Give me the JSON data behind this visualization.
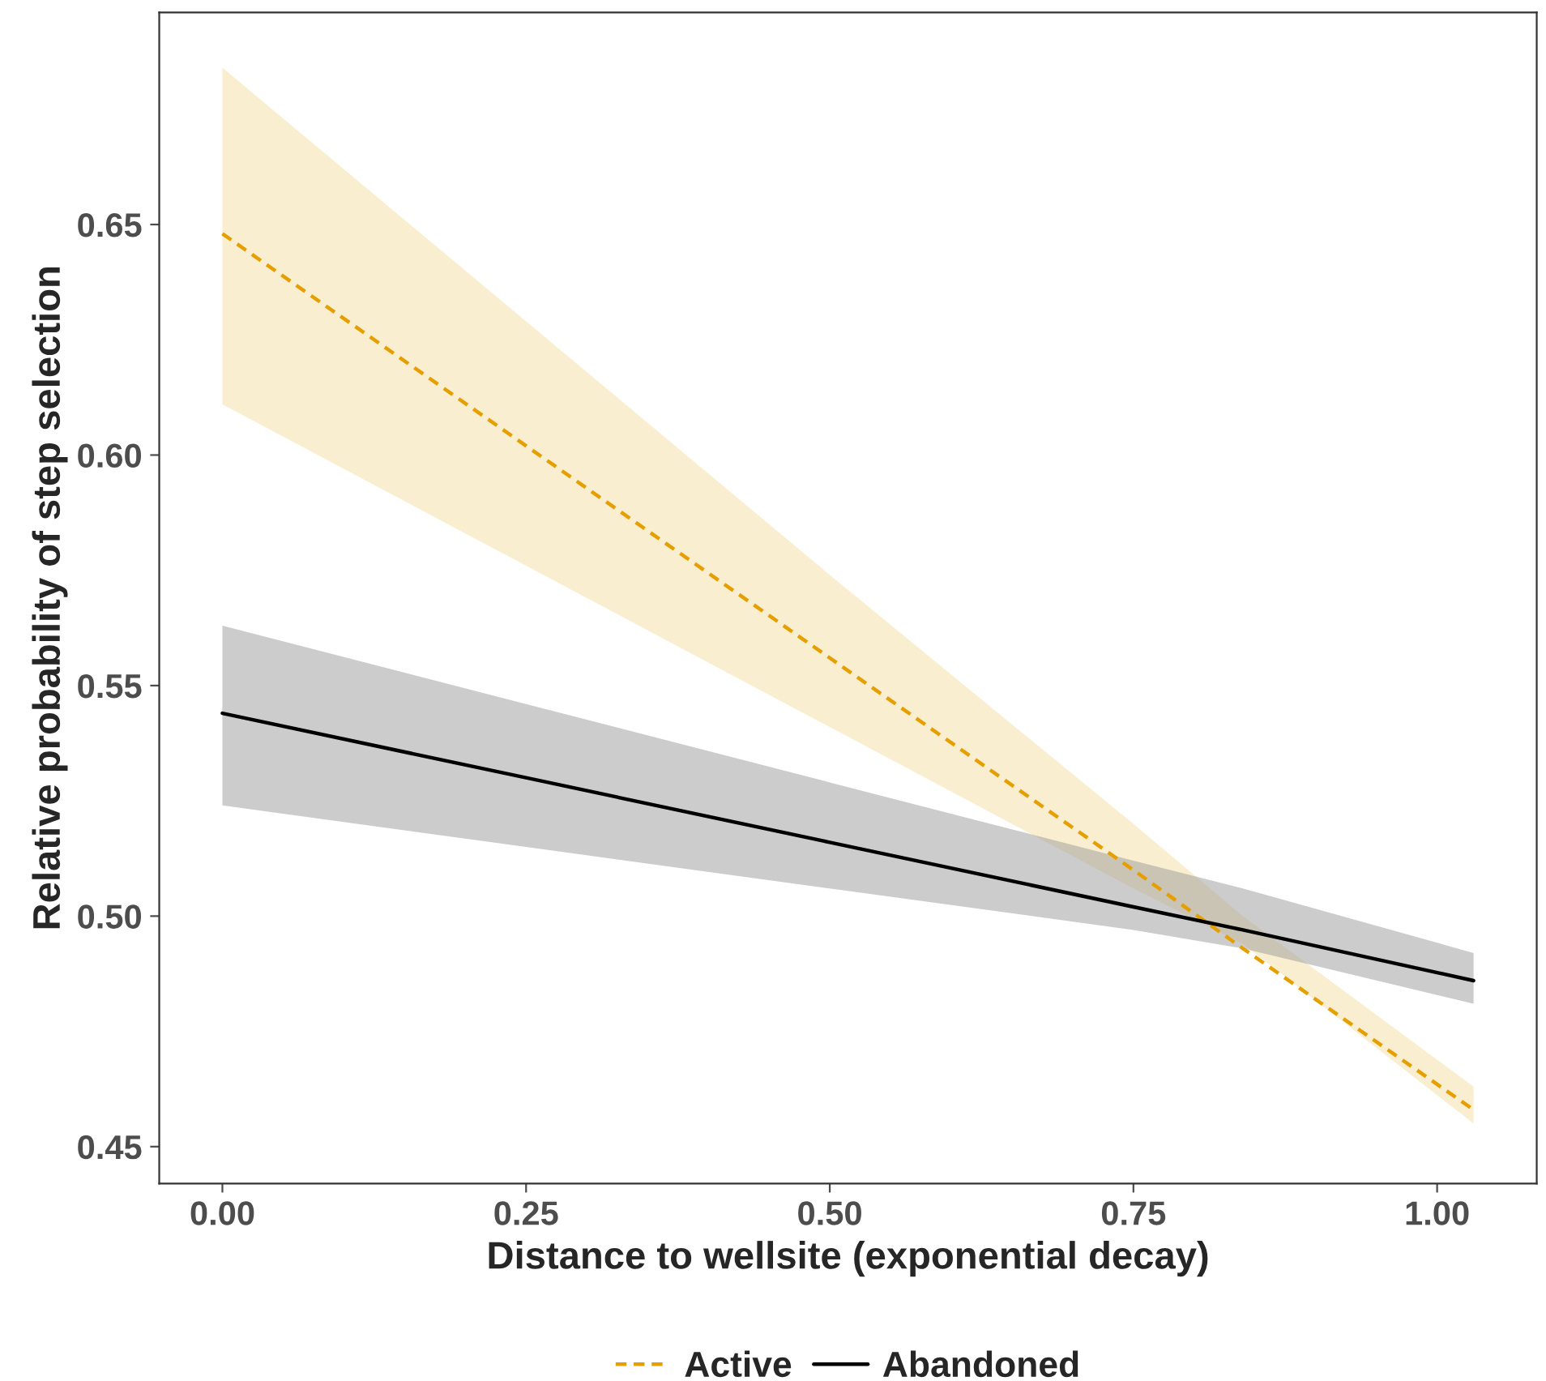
{
  "chart_data": {
    "type": "line",
    "xlabel": "Distance to wellsite (exponential decay)",
    "ylabel": "Relative probability of step selection",
    "x": [
      0,
      0.25,
      0.5,
      0.75,
      0.84,
      1.03
    ],
    "series": [
      {
        "name": "Active",
        "color": "#e69f00",
        "line_style": "dashed",
        "values": [
          0.648,
          0.602,
          0.556,
          0.51,
          0.493,
          0.458
        ],
        "upper": [
          0.684,
          0.629,
          0.574,
          0.52,
          0.5,
          0.463
        ],
        "lower": [
          0.611,
          0.576,
          0.541,
          0.506,
          0.494,
          0.455
        ]
      },
      {
        "name": "Abandoned",
        "color": "#000000",
        "line_style": "solid",
        "values": [
          0.544,
          0.53,
          0.516,
          0.502,
          0.497,
          0.486
        ],
        "upper": [
          0.563,
          0.546,
          0.529,
          0.512,
          0.506,
          0.492
        ],
        "lower": [
          0.524,
          0.515,
          0.506,
          0.497,
          0.493,
          0.481
        ]
      }
    ],
    "xlim": [
      -0.052,
      1.082
    ],
    "ylim": [
      0.442,
      0.696
    ],
    "xticks": [
      {
        "value": 0,
        "label": "0.00"
      },
      {
        "value": 0.25,
        "label": "0.25"
      },
      {
        "value": 0.5,
        "label": "0.50"
      },
      {
        "value": 0.75,
        "label": "0.75"
      },
      {
        "value": 1,
        "label": "1.00"
      }
    ],
    "yticks": [
      {
        "value": 0.45,
        "label": "0.45"
      },
      {
        "value": 0.5,
        "label": "0.50"
      },
      {
        "value": 0.55,
        "label": "0.55"
      },
      {
        "value": 0.6,
        "label": "0.60"
      },
      {
        "value": 0.65,
        "label": "0.65"
      }
    ],
    "grid": false,
    "legend": "bottom",
    "marker": "none"
  }
}
